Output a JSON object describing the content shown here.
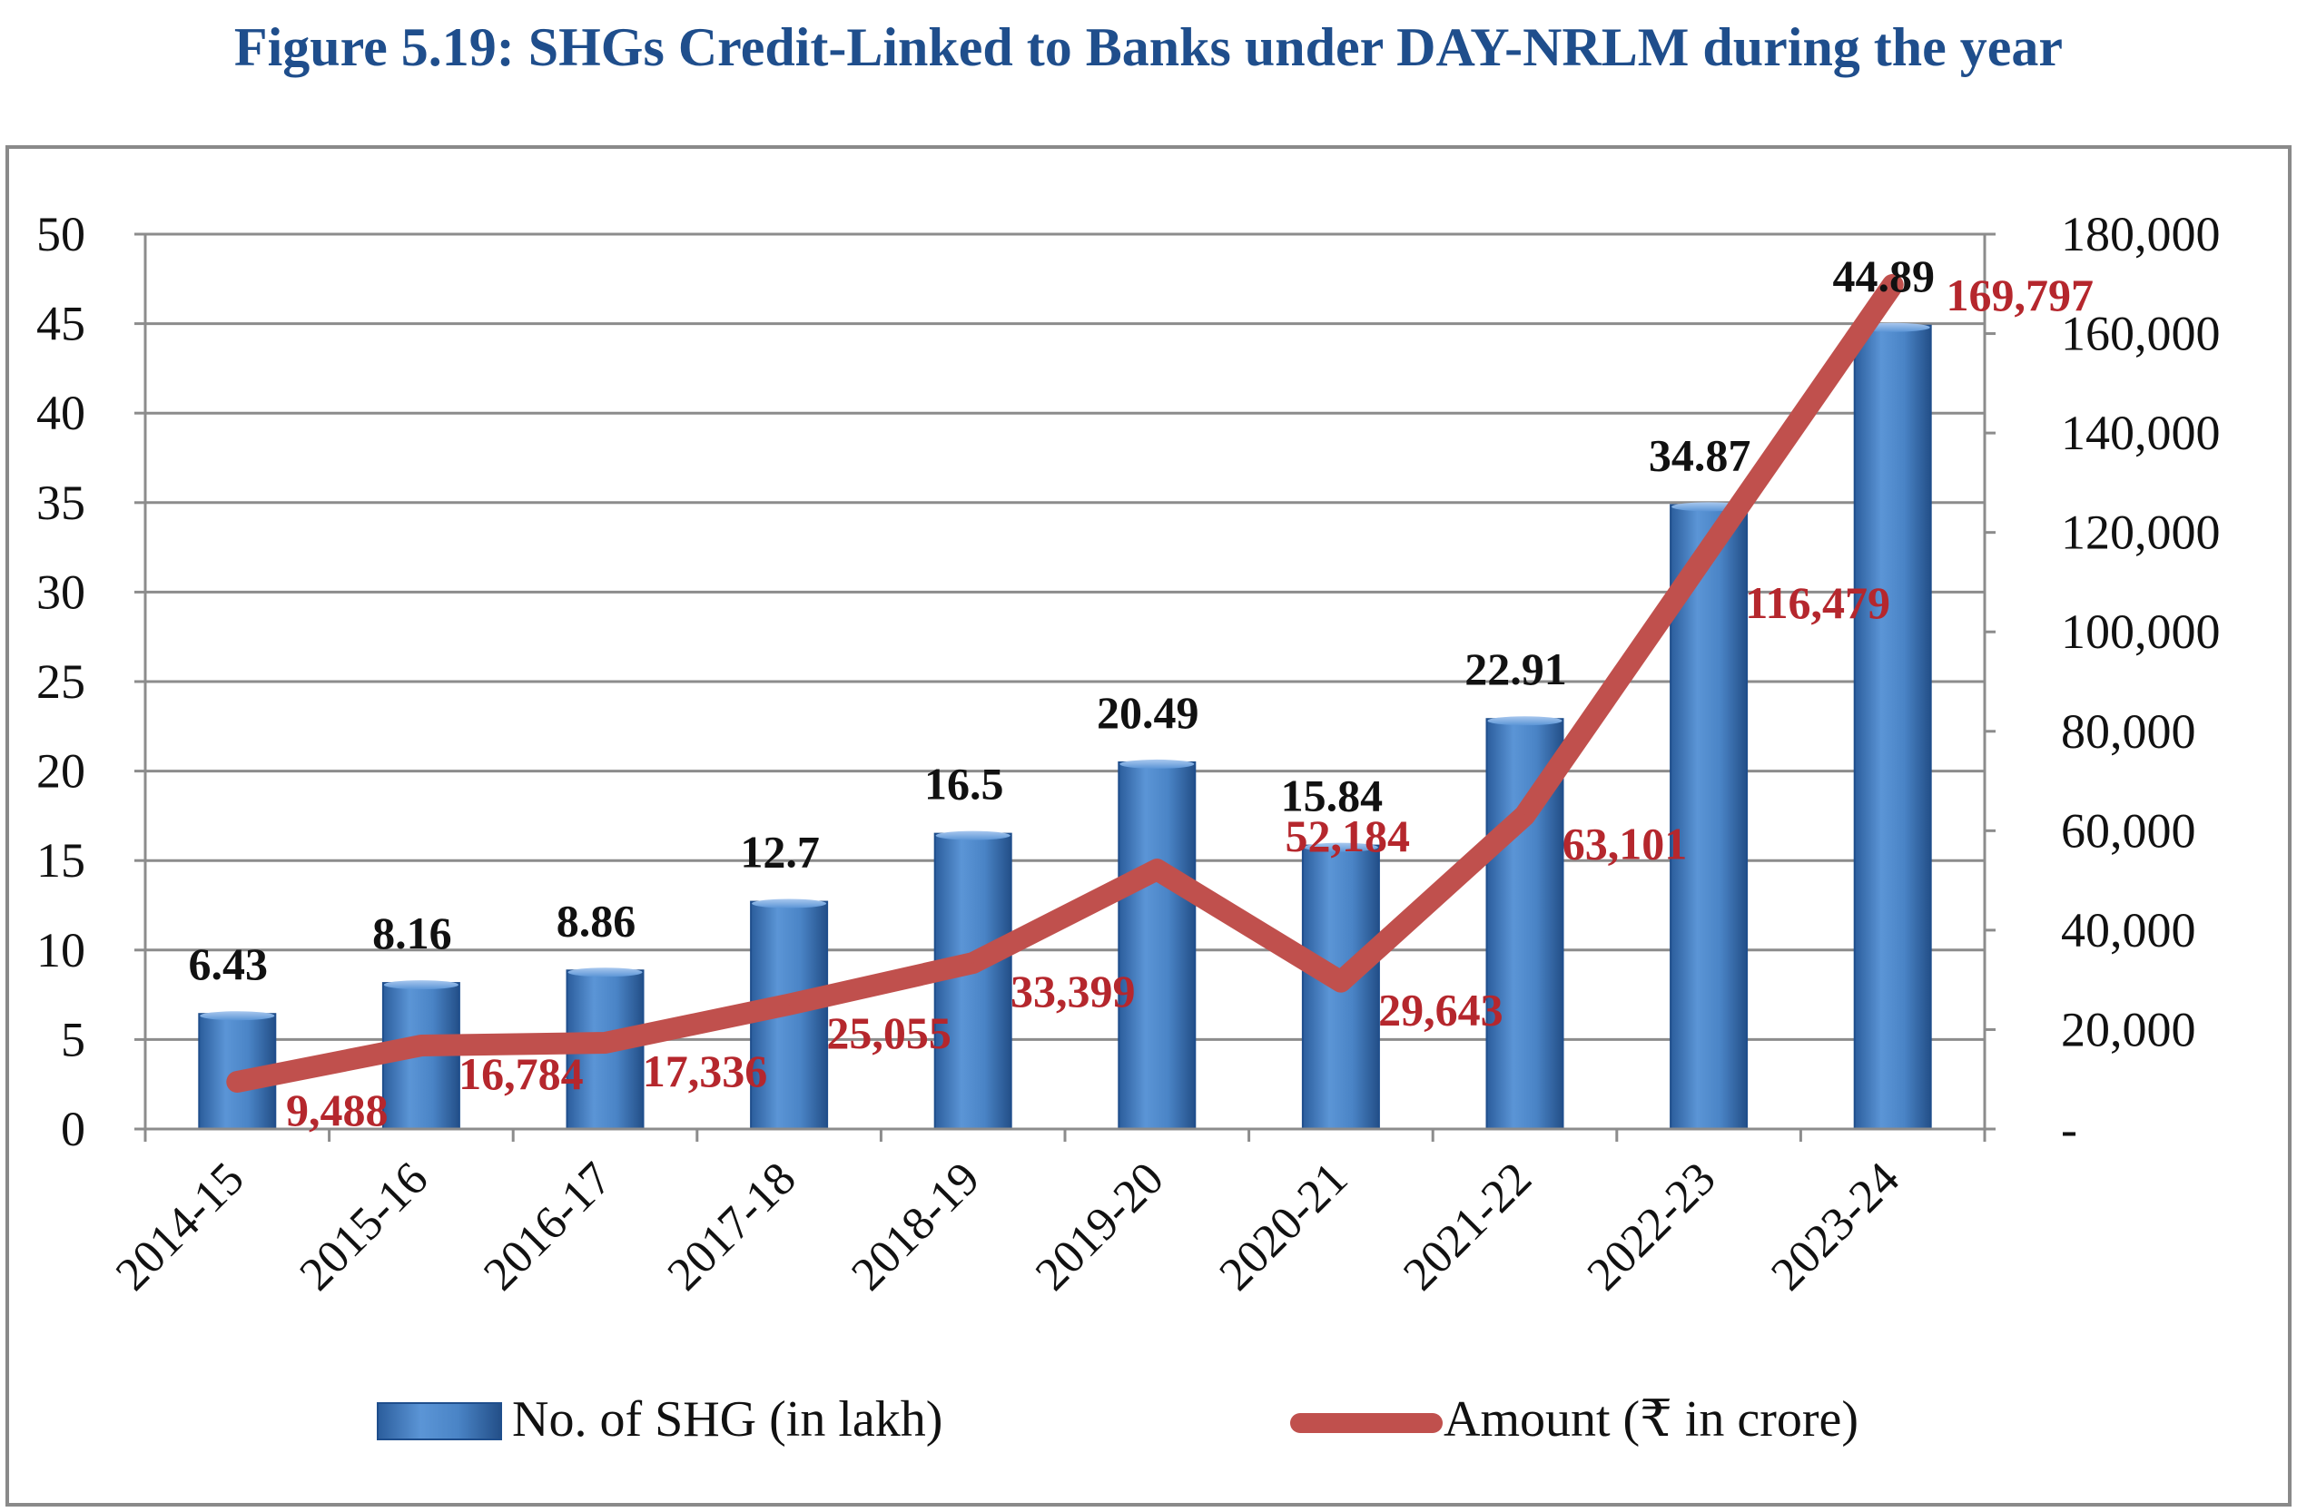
{
  "chart_data": {
    "type": "bar",
    "title": "Figure 5.19: SHGs Credit-Linked to Banks under DAY-NRLM during the year",
    "categories": [
      "2014-15",
      "2015-16",
      "2016-17",
      "2017-18",
      "2018-19",
      "2019-20",
      "2020-21",
      "2021-22",
      "2022-23",
      "2023-24"
    ],
    "series": [
      {
        "name": "No. of SHG (in lakh)",
        "type": "bar",
        "axis": "left",
        "color": "#3f78be",
        "values": [
          6.43,
          8.16,
          8.86,
          12.7,
          16.5,
          20.49,
          15.84,
          22.91,
          34.87,
          44.89
        ],
        "labels": [
          "6.43",
          "8.16",
          "8.86",
          "12.7",
          "16.5",
          "20.49",
          "15.84",
          "22.91",
          "34.87",
          "44.89"
        ]
      },
      {
        "name": "Amount (₹ in crore)",
        "type": "line",
        "axis": "right",
        "color": "#c0504d",
        "values": [
          9488,
          16784,
          17336,
          25055,
          33399,
          52184,
          29643,
          63101,
          116479,
          169797
        ],
        "labels": [
          "9,488",
          "16,784",
          "17,336",
          "25,055",
          "33,399",
          "52,184",
          "29,643",
          "63,101",
          "116,479",
          "169,797"
        ]
      }
    ],
    "y_left": {
      "min": 0,
      "max": 50,
      "ticks": [
        0,
        5,
        10,
        15,
        20,
        25,
        30,
        35,
        40,
        45,
        50
      ],
      "tick_labels": [
        "0",
        "5",
        "10",
        "15",
        "20",
        "25",
        "30",
        "35",
        "40",
        "45",
        "50"
      ]
    },
    "y_right": {
      "min": 0,
      "max": 180000,
      "ticks": [
        0,
        20000,
        40000,
        60000,
        80000,
        100000,
        120000,
        140000,
        160000,
        180000
      ],
      "tick_labels": [
        "-",
        "20,000",
        "40,000",
        "60,000",
        "80,000",
        "100,000",
        "120,000",
        "140,000",
        "160,000",
        "180,000"
      ]
    },
    "grid": true,
    "legend": "bottom"
  }
}
